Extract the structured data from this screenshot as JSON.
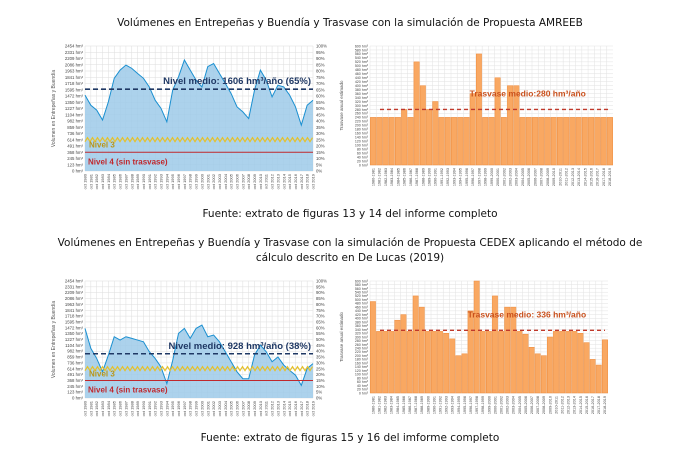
{
  "section1": {
    "title": "Volúmenes en Entrepeñas y Buendía y Trasvase  con la simulación de Propuesta AMREEB",
    "caption": "Fuente: extrato de figuras 13 y 14 del informe completo"
  },
  "section2": {
    "title_line1": "Volúmenes en Entrepeñas y Buendía y Trasvase con la simulación de Propuesta CEDEX aplicando el método de",
    "title_line2": "cálculo descrito en De Lucas (2019)",
    "caption": "Fuente: extrato de figuras 15 y 16 del imforme completo"
  },
  "colors": {
    "area_fill": "#9ecae9",
    "area_line": "#1a8fd0",
    "mean_volume_line": "#1f3864",
    "nivel3": "#e6c12a",
    "nivel4": "#c0282d",
    "bar_fill": "#f9a862",
    "bar_edge": "#ee8a3a",
    "mean_transfer_line": "#c0392b"
  },
  "chart_data": [
    {
      "type": "area",
      "ylabel": "Volumen en Entrepeñas y Buendía",
      "yticks": [
        "0 hm³",
        "123 hm³",
        "245 hm³",
        "368 hm³",
        "491 hm³",
        "614 hm³",
        "736 hm³",
        "859 hm³",
        "982 hm³",
        "1104 hm³",
        "1227 hm³",
        "1350 hm³",
        "1472 hm³",
        "1595 hm³",
        "1718 hm³",
        "1841 hm³",
        "1963 hm³",
        "2086 hm³",
        "2209 hm³",
        "2331 hm³",
        "2454 hm³"
      ],
      "ylim": [
        0,
        2454
      ],
      "y2ticks": [
        "0%",
        "5%",
        "10%",
        "15%",
        "20%",
        "25%",
        "30%",
        "35%",
        "40%",
        "45%",
        "50%",
        "55%",
        "60%",
        "65%",
        "70%",
        "75%",
        "80%",
        "85%",
        "90%",
        "95%",
        "100%"
      ],
      "xticks": [
        "oct 1980",
        "oct 1981",
        "oct 1982",
        "oct 1983",
        "oct 1984",
        "oct 1985",
        "oct 1986",
        "oct 1987",
        "oct 1988",
        "oct 1989",
        "oct 1990",
        "oct 1991",
        "oct 1992",
        "oct 1993",
        "oct 1994",
        "oct 1995",
        "oct 1996",
        "oct 1997",
        "oct 1998",
        "oct 1999",
        "oct 2000",
        "oct 2001",
        "oct 2002",
        "oct 2003",
        "oct 2004",
        "oct 2005",
        "oct 2006",
        "oct 2007",
        "oct 2008",
        "oct 2009",
        "oct 2010",
        "oct 2011",
        "oct 2012",
        "oct 2013",
        "oct 2014",
        "oct 2015",
        "oct 2016",
        "oct 2017",
        "oct 2018",
        "oct 2019"
      ],
      "values": [
        1490,
        1290,
        1195,
        1000,
        1360,
        1820,
        1980,
        2080,
        2015,
        1915,
        1820,
        1650,
        1390,
        1230,
        965,
        1590,
        1850,
        2180,
        1980,
        1785,
        1650,
        2050,
        2110,
        1915,
        1720,
        1520,
        1260,
        1160,
        1030,
        1590,
        1980,
        1785,
        1455,
        1685,
        1650,
        1490,
        1260,
        900,
        1290,
        1390
      ],
      "mean": 1606,
      "mean_label": "Nivel medio: 1606 hm³/año (65%)",
      "nivel3": 615,
      "nivel3_label": "Nivel 3",
      "nivel4": 368,
      "nivel4_label": "Nivel 4 (sin trasvase)",
      "grid": true
    },
    {
      "type": "bar",
      "ylabel": "Trasvase anual estimado",
      "ylim": [
        0,
        600
      ],
      "yticks": [
        "0 hm³",
        "20 hm³",
        "40 hm³",
        "60 hm³",
        "80 hm³",
        "100 hm³",
        "120 hm³",
        "140 hm³",
        "160 hm³",
        "180 hm³",
        "200 hm³",
        "220 hm³",
        "240 hm³",
        "260 hm³",
        "280 hm³",
        "300 hm³",
        "320 hm³",
        "340 hm³",
        "360 hm³",
        "380 hm³",
        "400 hm³",
        "420 hm³",
        "440 hm³",
        "460 hm³",
        "480 hm³",
        "500 hm³",
        "520 hm³",
        "540 hm³",
        "560 hm³",
        "580 hm³",
        "600 hm³"
      ],
      "categories": [
        "1980-1981",
        "1981-1982",
        "1982-1983",
        "1983-1984",
        "1984-1985",
        "1985-1986",
        "1986-1987",
        "1987-1988",
        "1988-1989",
        "1989-1990",
        "1990-1991",
        "1991-1992",
        "1992-1993",
        "1993-1994",
        "1994-1995",
        "1995-1996",
        "1996-1997",
        "1997-1998",
        "1998-1999",
        "1999-2000",
        "2000-2001",
        "2001-2002",
        "2002-2003",
        "2003-2004",
        "2004-2005",
        "2005-2006",
        "2006-2007",
        "2007-2008",
        "2008-2009",
        "2009-2010",
        "2010-2011",
        "2011-2012",
        "2012-2013",
        "2013-2014",
        "2014-2015",
        "2015-2016",
        "2016-2017",
        "2017-2018",
        "2018-2019"
      ],
      "values": [
        240,
        240,
        240,
        240,
        240,
        280,
        240,
        520,
        400,
        280,
        320,
        240,
        240,
        240,
        240,
        240,
        360,
        560,
        240,
        240,
        440,
        240,
        400,
        400,
        240,
        240,
        240,
        240,
        240,
        240,
        240,
        240,
        240,
        240,
        240,
        240,
        240,
        240,
        240
      ],
      "mean": 280,
      "mean_label": "Trasvase medio:280 hm³/año",
      "grid": true
    },
    {
      "type": "area",
      "ylabel": "Volumen en Entrepeñas y Buendía",
      "yticks": [
        "0 hm³",
        "123 hm³",
        "245 hm³",
        "368 hm³",
        "491 hm³",
        "614 hm³",
        "736 hm³",
        "859 hm³",
        "982 hm³",
        "1104 hm³",
        "1227 hm³",
        "1350 hm³",
        "1472 hm³",
        "1595 hm³",
        "1718 hm³",
        "1841 hm³",
        "1963 hm³",
        "2086 hm³",
        "2209 hm³",
        "2331 hm³",
        "2454 hm³"
      ],
      "ylim": [
        0,
        2454
      ],
      "y2ticks": [
        "0%",
        "5%",
        "10%",
        "15%",
        "20%",
        "25%",
        "30%",
        "35%",
        "40%",
        "45%",
        "50%",
        "55%",
        "60%",
        "65%",
        "70%",
        "75%",
        "80%",
        "85%",
        "90%",
        "95%",
        "100%"
      ],
      "xticks": [
        "oct 1980",
        "oct 1981",
        "oct 1982",
        "oct 1983",
        "oct 1984",
        "oct 1985",
        "oct 1986",
        "oct 1987",
        "oct 1988",
        "oct 1989",
        "oct 1990",
        "oct 1991",
        "oct 1992",
        "oct 1993",
        "oct 1994",
        "oct 1995",
        "oct 1996",
        "oct 1997",
        "oct 1998",
        "oct 1999",
        "oct 2000",
        "oct 2001",
        "oct 2002",
        "oct 2003",
        "oct 2004",
        "oct 2005",
        "oct 2006",
        "oct 2007",
        "oct 2008",
        "oct 2009",
        "oct 2010",
        "oct 2011",
        "oct 2012",
        "oct 2013",
        "oct 2014",
        "oct 2015",
        "oct 2016",
        "oct 2017",
        "oct 2018",
        "oct 2019"
      ],
      "values": [
        1460,
        1040,
        830,
        550,
        900,
        1285,
        1215,
        1285,
        1250,
        1215,
        1180,
        970,
        830,
        650,
        300,
        790,
        1355,
        1460,
        1250,
        1460,
        1530,
        1285,
        1320,
        1180,
        970,
        760,
        550,
        405,
        405,
        900,
        1110,
        970,
        760,
        860,
        690,
        580,
        480,
        265,
        620,
        720
      ],
      "mean": 928,
      "mean_label": "Nivel medio: 928 hm³/año (38%)",
      "nivel3": 615,
      "nivel3_label": "Nivel 3",
      "nivel4": 368,
      "nivel4_label": "Nivel 4 (sin trasvase)",
      "grid": true
    },
    {
      "type": "bar",
      "ylabel": "Trasvase anual estimado",
      "ylim": [
        0,
        600
      ],
      "yticks": [
        "0 hm³",
        "20 hm³",
        "40 hm³",
        "60 hm³",
        "80 hm³",
        "100 hm³",
        "120 hm³",
        "140 hm³",
        "160 hm³",
        "180 hm³",
        "200 hm³",
        "220 hm³",
        "240 hm³",
        "260 hm³",
        "280 hm³",
        "300 hm³",
        "320 hm³",
        "340 hm³",
        "360 hm³",
        "380 hm³",
        "400 hm³",
        "420 hm³",
        "440 hm³",
        "460 hm³",
        "480 hm³",
        "500 hm³",
        "520 hm³",
        "540 hm³",
        "560 hm³",
        "580 hm³",
        "600 hm³"
      ],
      "categories": [
        "1980-1981",
        "1981-1982",
        "1982-1983",
        "1983-1984",
        "1984-1985",
        "1985-1986",
        "1986-1987",
        "1987-1988",
        "1988-1989",
        "1989-1990",
        "1990-1991",
        "1991-1992",
        "1992-1993",
        "1993-1994",
        "1994-1995",
        "1995-1996",
        "1996-1997",
        "1997-1998",
        "1998-1999",
        "1999-2000",
        "2000-2001",
        "2001-2002",
        "2002-2003",
        "2003-2004",
        "2004-2005",
        "2005-2006",
        "2006-2007",
        "2007-2008",
        "2008-2009",
        "2009-2010",
        "2010-2011",
        "2011-2012",
        "2012-2013",
        "2013-2014",
        "2014-2015",
        "2015-2016",
        "2016-2017",
        "2017-2018",
        "2018-2019"
      ],
      "values": [
        490,
        330,
        330,
        330,
        390,
        420,
        330,
        520,
        460,
        330,
        330,
        330,
        320,
        290,
        200,
        210,
        440,
        600,
        330,
        330,
        520,
        330,
        460,
        460,
        330,
        315,
        245,
        210,
        200,
        300,
        330,
        330,
        330,
        330,
        320,
        270,
        180,
        150,
        285
      ],
      "mean": 336,
      "mean_label": "Trasvase medio: 336 hm³/año",
      "grid": true
    }
  ]
}
